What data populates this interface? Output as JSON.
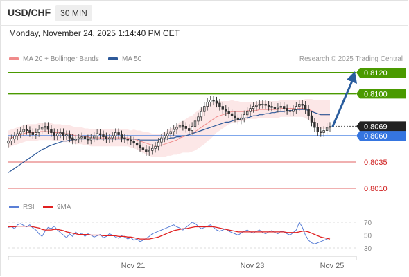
{
  "header": {
    "symbol": "USD/CHF",
    "timeframe": "30 MIN",
    "datetime": "Monday, November 24, 2025 1:14:40 PM CET"
  },
  "legend": {
    "bollinger_label": "MA 20 + Bollinger Bands",
    "ma50_label": "MA 50",
    "rsi_label": "RSI",
    "rsi_ma_label": "9MA",
    "credit": "Research © 2025 Trading Central"
  },
  "colors": {
    "bollinger": "#f08b8b",
    "ma50": "#2e5a9a",
    "rsi": "#5a7fd6",
    "rsi_ma": "#e02020",
    "resistance": "#4a9a00",
    "support": "#3575e0",
    "support_minor": "#e06060",
    "current": "#222222",
    "arrow": "#2a5d9e"
  },
  "chart_data": [
    {
      "type": "candlestick",
      "ylim": [
        0.8,
        0.813
      ],
      "levels": [
        {
          "value": 0.812,
          "label": "0.8120",
          "kind": "resistance"
        },
        {
          "value": 0.81,
          "label": "0.8100",
          "kind": "resistance"
        },
        {
          "value": 0.8069,
          "label": "0.8069",
          "kind": "current"
        },
        {
          "value": 0.806,
          "label": "0.8060",
          "kind": "pivot"
        },
        {
          "value": 0.8035,
          "label": "0.8035",
          "kind": "support"
        },
        {
          "value": 0.801,
          "label": "0.8010",
          "kind": "support"
        }
      ],
      "x_ticks": [
        "Nov 21",
        "Nov 23",
        "Nov 25"
      ],
      "forecast": {
        "from": 0.8069,
        "to": 0.812
      },
      "close": [
        0.8055,
        0.8057,
        0.806,
        0.8062,
        0.8064,
        0.8066,
        0.8065,
        0.8063,
        0.8061,
        0.8063,
        0.8066,
        0.8068,
        0.8069,
        0.8066,
        0.8063,
        0.806,
        0.8062,
        0.8063,
        0.806,
        0.8061,
        0.8058,
        0.8056,
        0.8057,
        0.8058,
        0.8059,
        0.8057,
        0.8056,
        0.8058,
        0.806,
        0.8062,
        0.8061,
        0.8059,
        0.8057,
        0.8058,
        0.806,
        0.8063,
        0.8061,
        0.8058,
        0.8057,
        0.8056,
        0.8055,
        0.8053,
        0.8051,
        0.8049,
        0.8047,
        0.8045,
        0.8046,
        0.8048,
        0.805,
        0.8054,
        0.8058,
        0.806,
        0.8062,
        0.8064,
        0.8066,
        0.8068,
        0.807,
        0.8069,
        0.8067,
        0.8065,
        0.8069,
        0.8074,
        0.8078,
        0.8083,
        0.8088,
        0.8092,
        0.8094,
        0.8093,
        0.8091,
        0.8088,
        0.8085,
        0.8083,
        0.8081,
        0.8079,
        0.8077,
        0.8075,
        0.8077,
        0.808,
        0.8083,
        0.8086,
        0.8088,
        0.8089,
        0.809,
        0.809,
        0.8089,
        0.8088,
        0.8087,
        0.8086,
        0.8087,
        0.8088,
        0.8086,
        0.8084,
        0.8083,
        0.8085,
        0.8088,
        0.809,
        0.8089,
        0.8085,
        0.8079,
        0.8073,
        0.8068,
        0.8064,
        0.8063,
        0.8065,
        0.8068,
        0.8069
      ],
      "ma20": [
        0.8057,
        0.8058,
        0.8059,
        0.806,
        0.8061,
        0.8062,
        0.8063,
        0.8063,
        0.8063,
        0.8063,
        0.8064,
        0.8064,
        0.8064,
        0.8064,
        0.8064,
        0.8063,
        0.8063,
        0.8063,
        0.8062,
        0.8062,
        0.8062,
        0.8061,
        0.806,
        0.806,
        0.806,
        0.8059,
        0.8059,
        0.8058,
        0.8058,
        0.8058,
        0.8058,
        0.8058,
        0.8058,
        0.8058,
        0.8058,
        0.8058,
        0.8058,
        0.8058,
        0.8058,
        0.8058,
        0.8057,
        0.8057,
        0.8056,
        0.8055,
        0.8054,
        0.8053,
        0.8052,
        0.8051,
        0.8051,
        0.8051,
        0.8051,
        0.8052,
        0.8053,
        0.8054,
        0.8055,
        0.8056,
        0.8058,
        0.8059,
        0.806,
        0.8061,
        0.8062,
        0.8064,
        0.8066,
        0.8068,
        0.807,
        0.8072,
        0.8074,
        0.8076,
        0.8078,
        0.8079,
        0.808,
        0.8081,
        0.8082,
        0.8083,
        0.8083,
        0.8083,
        0.8083,
        0.8083,
        0.8084,
        0.8084,
        0.8084,
        0.8084,
        0.8085,
        0.8085,
        0.8085,
        0.8085,
        0.8085,
        0.8085,
        0.8085,
        0.8086,
        0.8086,
        0.8086,
        0.8086,
        0.8086,
        0.8086,
        0.8086,
        0.8086,
        0.8086,
        0.8085,
        0.8084,
        0.8082,
        0.8081,
        0.808,
        0.808,
        0.808,
        0.808
      ],
      "ma50": [
        0.8025,
        0.8027,
        0.8029,
        0.8031,
        0.8033,
        0.8035,
        0.8037,
        0.8039,
        0.8041,
        0.8043,
        0.8045,
        0.8047,
        0.8048,
        0.805,
        0.8051,
        0.8052,
        0.8053,
        0.8054,
        0.8055,
        0.8055,
        0.8056,
        0.8056,
        0.8057,
        0.8057,
        0.8057,
        0.8057,
        0.8057,
        0.8057,
        0.8057,
        0.8057,
        0.8057,
        0.8057,
        0.8057,
        0.8057,
        0.8057,
        0.8057,
        0.8057,
        0.8057,
        0.8057,
        0.8057,
        0.8057,
        0.8057,
        0.8057,
        0.8056,
        0.8056,
        0.8056,
        0.8056,
        0.8056,
        0.8056,
        0.8056,
        0.8057,
        0.8057,
        0.8057,
        0.8058,
        0.8058,
        0.8059,
        0.8059,
        0.806,
        0.806,
        0.8061,
        0.8062,
        0.8063,
        0.8064,
        0.8065,
        0.8066,
        0.8067,
        0.8068,
        0.8069,
        0.807,
        0.8071,
        0.8072,
        0.8073,
        0.8073,
        0.8074,
        0.8075,
        0.8075,
        0.8076,
        0.8077,
        0.8077,
        0.8078,
        0.8079,
        0.8079,
        0.808,
        0.808,
        0.8081,
        0.8081,
        0.8082,
        0.8082,
        0.8083,
        0.8083,
        0.8083,
        0.8084,
        0.8084,
        0.8084,
        0.8085,
        0.8085,
        0.8085,
        0.8085,
        0.8084,
        0.8083,
        0.8082,
        0.8081,
        0.808,
        0.808,
        0.808,
        0.808
      ],
      "band_width": [
        0.0008,
        0.0008,
        0.0008,
        0.0008,
        0.0008,
        0.0008,
        0.0008,
        0.0008,
        0.0008,
        0.0008,
        0.0008,
        0.0008,
        0.0008,
        0.0008,
        0.0008,
        0.0008,
        0.0008,
        0.0008,
        0.0008,
        0.0008,
        0.0008,
        0.0008,
        0.0008,
        0.0008,
        0.0008,
        0.0008,
        0.0008,
        0.0008,
        0.0008,
        0.0008,
        0.0008,
        0.0008,
        0.0008,
        0.0008,
        0.0008,
        0.0008,
        0.0008,
        0.0008,
        0.0008,
        0.0008,
        0.0008,
        0.0009,
        0.0009,
        0.001,
        0.001,
        0.0011,
        0.0011,
        0.0011,
        0.0011,
        0.0011,
        0.0011,
        0.0012,
        0.0012,
        0.0013,
        0.0013,
        0.0014,
        0.0015,
        0.0015,
        0.0016,
        0.0017,
        0.0017,
        0.0018,
        0.0018,
        0.0018,
        0.0018,
        0.0017,
        0.0017,
        0.0016,
        0.0015,
        0.0014,
        0.0013,
        0.0012,
        0.0011,
        0.0011,
        0.001,
        0.001,
        0.0009,
        0.0009,
        0.0008,
        0.0008,
        0.0008,
        0.0008,
        0.0008,
        0.0008,
        0.0008,
        0.0008,
        0.0008,
        0.0008,
        0.0008,
        0.0008,
        0.0008,
        0.0008,
        0.0008,
        0.0008,
        0.0008,
        0.0008,
        0.0008,
        0.0009,
        0.001,
        0.0011,
        0.0012,
        0.0013,
        0.0014,
        0.0014,
        0.0014,
        0.0014
      ]
    },
    {
      "type": "line",
      "ylim": [
        20,
        80
      ],
      "y_ticks": [
        70,
        50,
        30
      ],
      "series": [
        {
          "name": "RSI",
          "values": [
            62,
            64,
            60,
            66,
            68,
            65,
            63,
            66,
            61,
            58,
            52,
            48,
            56,
            62,
            60,
            64,
            58,
            54,
            50,
            46,
            52,
            48,
            55,
            50,
            53,
            48,
            52,
            50,
            47,
            49,
            51,
            46,
            48,
            52,
            50,
            47,
            45,
            49,
            47,
            44,
            46,
            42,
            44,
            40,
            42,
            45,
            48,
            52,
            54,
            56,
            58,
            60,
            62,
            64,
            66,
            63,
            61,
            58,
            62,
            66,
            70,
            68,
            64,
            60,
            62,
            64,
            66,
            62,
            58,
            56,
            58,
            60,
            56,
            54,
            52,
            50,
            53,
            56,
            58,
            55,
            53,
            56,
            58,
            54,
            52,
            55,
            57,
            54,
            52,
            56,
            55,
            52,
            50,
            54,
            58,
            70,
            62,
            50,
            42,
            38,
            36,
            38,
            40,
            42,
            44,
            46
          ]
        },
        {
          "name": "9MA",
          "values": [
            63,
            63,
            63,
            64,
            64,
            64,
            64,
            64,
            63,
            62,
            61,
            59,
            58,
            58,
            58,
            59,
            59,
            58,
            57,
            55,
            54,
            53,
            52,
            51,
            51,
            51,
            51,
            50,
            50,
            50,
            50,
            49,
            49,
            49,
            49,
            49,
            48,
            48,
            48,
            47,
            47,
            46,
            45,
            44,
            44,
            44,
            44,
            45,
            46,
            47,
            49,
            51,
            53,
            55,
            57,
            58,
            59,
            60,
            60,
            61,
            62,
            63,
            63,
            63,
            63,
            63,
            63,
            63,
            62,
            61,
            60,
            59,
            58,
            57,
            56,
            55,
            55,
            55,
            55,
            55,
            55,
            55,
            55,
            55,
            55,
            55,
            55,
            55,
            55,
            55,
            55,
            54,
            54,
            54,
            54,
            55,
            56,
            56,
            55,
            53,
            51,
            49,
            47,
            46,
            45,
            44
          ]
        }
      ]
    }
  ]
}
